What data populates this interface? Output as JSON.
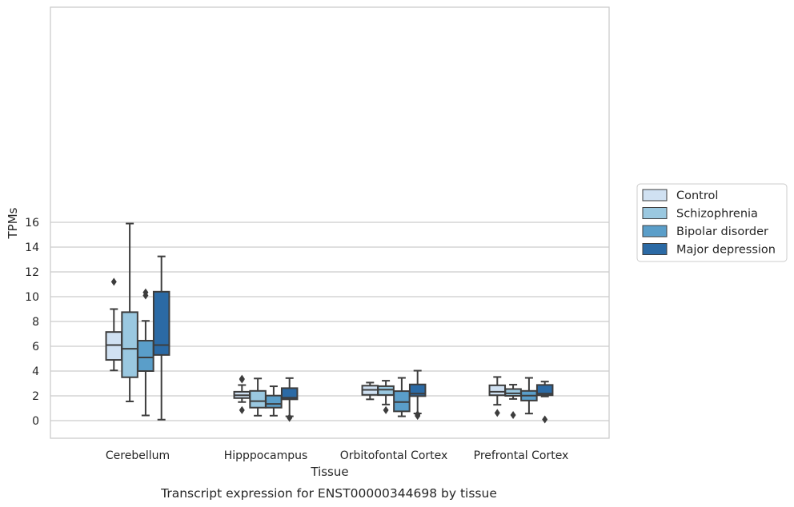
{
  "chart_data": {
    "type": "box",
    "title": "",
    "caption": "Transcript expression for ENST00000344698 by tissue",
    "xlabel": "Tissue",
    "ylabel": "TPMs",
    "ylim": [
      -0.7,
      16.7
    ],
    "yticks": [
      0,
      2,
      4,
      6,
      8,
      10,
      12,
      14,
      16
    ],
    "grid": true,
    "legend_position": "right",
    "categories": [
      "Cerebellum",
      "Hipppocampus",
      "Orbitofontal Cortex",
      "Prefrontal Cortex"
    ],
    "series": [
      {
        "name": "Control",
        "color": "#d0e1f2",
        "boxes": [
          {
            "whislo": 4.05,
            "q1": 4.9,
            "med": 6.1,
            "q3": 7.15,
            "whishi": 9.0,
            "fliers": [
              11.2
            ]
          },
          {
            "whislo": 1.5,
            "q1": 1.82,
            "med": 2.05,
            "q3": 2.33,
            "whishi": 2.87,
            "fliers": [
              0.85,
              3.32,
              3.38
            ]
          },
          {
            "whislo": 1.72,
            "q1": 2.08,
            "med": 2.48,
            "q3": 2.82,
            "whishi": 3.07,
            "fliers": []
          },
          {
            "whislo": 1.28,
            "q1": 2.05,
            "med": 2.33,
            "q3": 2.85,
            "whishi": 3.52,
            "fliers": [
              0.62
            ]
          }
        ]
      },
      {
        "name": "Schizophrenia",
        "color": "#9ac8e0",
        "boxes": [
          {
            "whislo": 1.55,
            "q1": 3.5,
            "med": 5.8,
            "q3": 8.75,
            "whishi": 15.9,
            "fliers": []
          },
          {
            "whislo": 0.4,
            "q1": 1.05,
            "med": 1.57,
            "q3": 2.4,
            "whishi": 3.4,
            "fliers": []
          },
          {
            "whislo": 1.3,
            "q1": 2.07,
            "med": 2.5,
            "q3": 2.78,
            "whishi": 3.22,
            "fliers": [
              0.85
            ]
          },
          {
            "whislo": 1.75,
            "q1": 2.0,
            "med": 2.2,
            "q3": 2.55,
            "whishi": 2.9,
            "fliers": [
              0.45
            ]
          }
        ]
      },
      {
        "name": "Bipolar disorder",
        "color": "#5a9ec9",
        "boxes": [
          {
            "whislo": 0.42,
            "q1": 4.0,
            "med": 5.1,
            "q3": 6.45,
            "whishi": 8.05,
            "fliers": [
              10.1,
              10.35
            ]
          },
          {
            "whislo": 0.4,
            "q1": 1.05,
            "med": 1.35,
            "q3": 2.02,
            "whishi": 2.77,
            "fliers": []
          },
          {
            "whislo": 0.35,
            "q1": 0.75,
            "med": 1.5,
            "q3": 2.38,
            "whishi": 3.45,
            "fliers": []
          },
          {
            "whislo": 0.57,
            "q1": 1.62,
            "med": 2.02,
            "q3": 2.4,
            "whishi": 3.45,
            "fliers": []
          }
        ]
      },
      {
        "name": "Major depression",
        "color": "#2b6aa5",
        "boxes": [
          {
            "whislo": 0.08,
            "q1": 5.3,
            "med": 6.1,
            "q3": 10.4,
            "whishi": 13.25,
            "fliers": []
          },
          {
            "whislo": 0.35,
            "q1": 1.72,
            "med": 1.85,
            "q3": 2.62,
            "whishi": 3.43,
            "fliers": [
              0.22,
              0.25
            ]
          },
          {
            "whislo": 0.58,
            "q1": 1.98,
            "med": 2.18,
            "q3": 2.92,
            "whishi": 4.03,
            "fliers": [
              0.38,
              0.45,
              0.52
            ]
          },
          {
            "whislo": 1.95,
            "q1": 2.05,
            "med": 2.18,
            "q3": 2.88,
            "whishi": 3.15,
            "fliers": [
              0.1
            ]
          }
        ]
      }
    ]
  }
}
